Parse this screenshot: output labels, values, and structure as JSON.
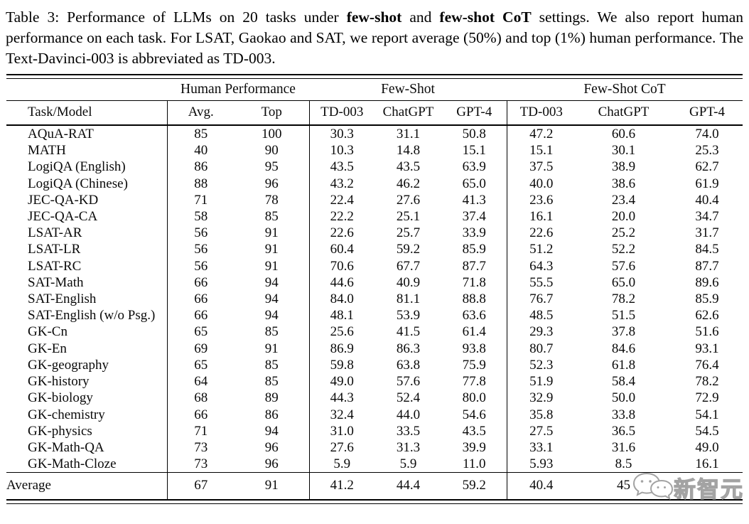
{
  "caption": {
    "segments": [
      {
        "text": "Table 3: Performance of LLMs on 20 tasks under "
      },
      {
        "text": "few-shot"
      },
      {
        "text": " and "
      },
      {
        "text": "few-shot CoT"
      },
      {
        "text": " settings.  We also report human performance on each task. For LSAT, Gaokao and SAT, we report average (50%) and top (1%) human performance. The Text-Davinci-003 is abbreviated as TD-003."
      }
    ]
  },
  "table": {
    "group_headers": [
      "Human Performance",
      "Few-Shot",
      "Few-Shot CoT"
    ],
    "columns": [
      "Task/Model",
      "Avg.",
      "Top",
      "TD-003",
      "ChatGPT",
      "GPT-4",
      "TD-003",
      "ChatGPT",
      "GPT-4"
    ],
    "rows": [
      {
        "task": "AQuA-RAT",
        "values": [
          "85",
          "100",
          "30.3",
          "31.1",
          "50.8",
          "47.2",
          "60.6",
          "74.0"
        ]
      },
      {
        "task": "MATH",
        "values": [
          "40",
          "90",
          "10.3",
          "14.8",
          "15.1",
          "15.1",
          "30.1",
          "25.3"
        ]
      },
      {
        "task": "LogiQA (English)",
        "values": [
          "86",
          "95",
          "43.5",
          "43.5",
          "63.9",
          "37.5",
          "38.9",
          "62.7"
        ]
      },
      {
        "task": "LogiQA (Chinese)",
        "values": [
          "88",
          "96",
          "43.2",
          "46.2",
          "65.0",
          "40.0",
          "38.6",
          "61.9"
        ]
      },
      {
        "task": "JEC-QA-KD",
        "values": [
          "71",
          "78",
          "22.4",
          "27.6",
          "41.3",
          "23.6",
          "23.4",
          "40.4"
        ]
      },
      {
        "task": "JEC-QA-CA",
        "values": [
          "58",
          "85",
          "22.2",
          "25.1",
          "37.4",
          "16.1",
          "20.0",
          "34.7"
        ]
      },
      {
        "task": "LSAT-AR",
        "values": [
          "56",
          "91",
          "22.6",
          "25.7",
          "33.9",
          "22.6",
          "25.2",
          "31.7"
        ]
      },
      {
        "task": "LSAT-LR",
        "values": [
          "56",
          "91",
          "60.4",
          "59.2",
          "85.9",
          "51.2",
          "52.2",
          "84.5"
        ]
      },
      {
        "task": "LSAT-RC",
        "values": [
          "56",
          "91",
          "70.6",
          "67.7",
          "87.7",
          "64.3",
          "57.6",
          "87.7"
        ]
      },
      {
        "task": "SAT-Math",
        "values": [
          "66",
          "94",
          "44.6",
          "40.9",
          "71.8",
          "55.5",
          "65.0",
          "89.6"
        ]
      },
      {
        "task": "SAT-English",
        "values": [
          "66",
          "94",
          "84.0",
          "81.1",
          "88.8",
          "76.7",
          "78.2",
          "85.9"
        ]
      },
      {
        "task": "SAT-English (w/o Psg.)",
        "values": [
          "66",
          "94",
          "48.1",
          "53.9",
          "63.6",
          "48.5",
          "51.5",
          "62.6"
        ]
      },
      {
        "task": "GK-Cn",
        "values": [
          "65",
          "85",
          "25.6",
          "41.5",
          "61.4",
          "29.3",
          "37.8",
          "51.6"
        ]
      },
      {
        "task": "GK-En",
        "values": [
          "69",
          "91",
          "86.9",
          "86.3",
          "93.8",
          "80.7",
          "84.6",
          "93.1"
        ]
      },
      {
        "task": "GK-geography",
        "values": [
          "65",
          "85",
          "59.8",
          "63.8",
          "75.9",
          "52.3",
          "61.8",
          "76.4"
        ]
      },
      {
        "task": "GK-history",
        "values": [
          "64",
          "85",
          "49.0",
          "57.6",
          "77.8",
          "51.9",
          "58.4",
          "78.2"
        ]
      },
      {
        "task": "GK-biology",
        "values": [
          "68",
          "89",
          "44.3",
          "52.4",
          "80.0",
          "32.9",
          "50.0",
          "72.9"
        ]
      },
      {
        "task": "GK-chemistry",
        "values": [
          "66",
          "86",
          "32.4",
          "44.0",
          "54.6",
          "35.8",
          "33.8",
          "54.1"
        ]
      },
      {
        "task": "GK-physics",
        "values": [
          "71",
          "94",
          "31.0",
          "33.5",
          "43.5",
          "27.5",
          "36.5",
          "54.5"
        ]
      },
      {
        "task": "GK-Math-QA",
        "values": [
          "73",
          "96",
          "27.6",
          "31.3",
          "39.9",
          "33.1",
          "31.6",
          "49.0"
        ]
      },
      {
        "task": "GK-Math-Cloze",
        "values": [
          "73",
          "96",
          "5.9",
          "5.9",
          "11.0",
          "5.93",
          "8.5",
          "16.1"
        ]
      }
    ],
    "average_row": {
      "task": "Average",
      "values": [
        "67",
        "91",
        "41.2",
        "44.4",
        "59.2",
        "40.4",
        "45",
        ""
      ]
    }
  },
  "watermark": {
    "text": "新智元",
    "icon": "wechat-chat-bubbles-icon",
    "color": "#a3a3a3"
  }
}
